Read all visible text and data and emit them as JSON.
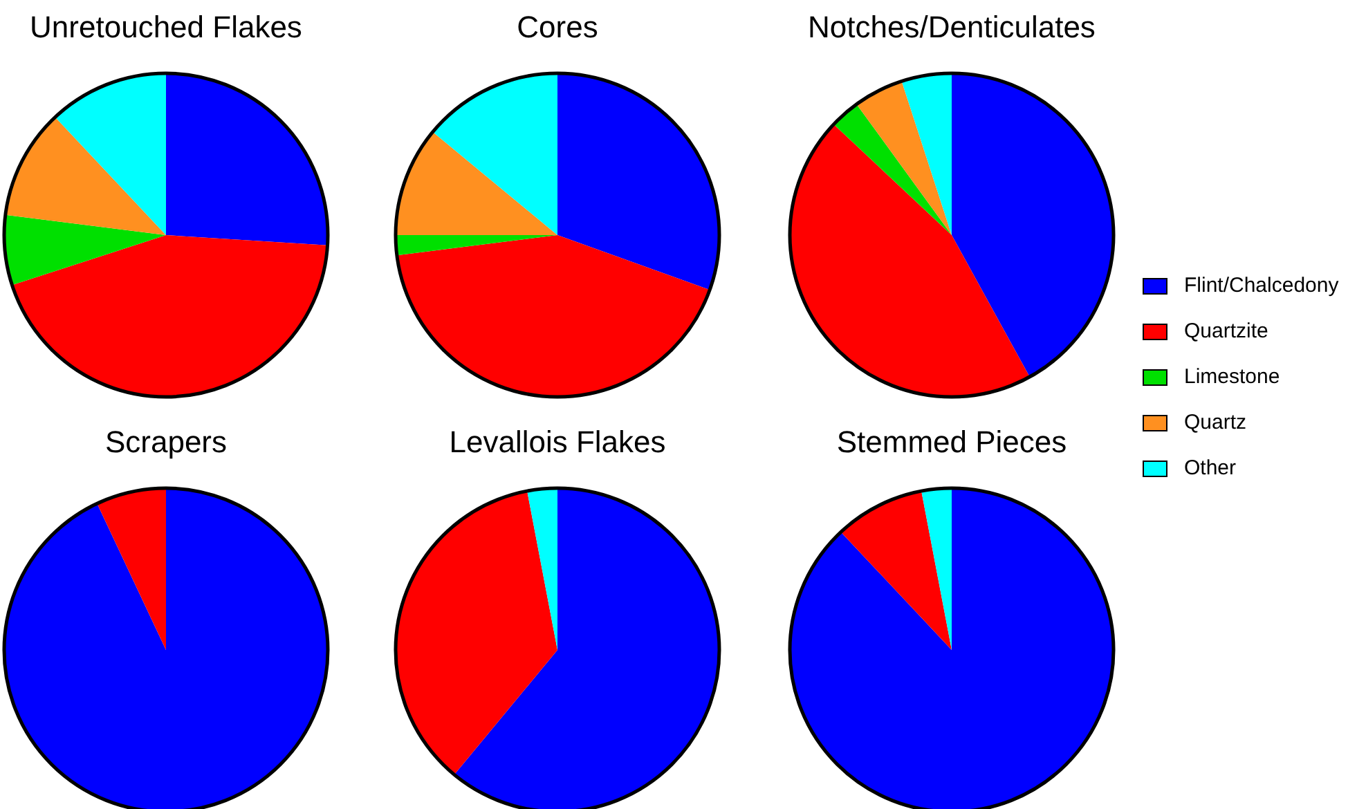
{
  "chart_data": [
    {
      "type": "pie",
      "title": "Unretouched Flakes",
      "categories": [
        null,
        null,
        null,
        null,
        null
      ],
      "values": [
        26,
        44,
        7,
        11,
        12
      ],
      "colors": [
        "#0000ff",
        "#ff0000",
        "#00e000",
        "#ff9020",
        "#00ffff"
      ]
    },
    {
      "type": "pie",
      "title": "Cores",
      "categories": [
        null,
        null,
        null,
        null,
        null
      ],
      "values": [
        30.5,
        42.5,
        2,
        11,
        14
      ],
      "colors": [
        "#0000ff",
        "#ff0000",
        "#00e000",
        "#ff9020",
        "#00ffff"
      ]
    },
    {
      "type": "pie",
      "title": "Notches/Denticulates",
      "categories": [
        "Flint/Chalcedony",
        "Quartzite",
        "Limestone",
        "Quartz",
        "Other"
      ],
      "values": [
        42,
        45,
        3,
        5,
        5
      ],
      "colors": [
        "#0000ff",
        "#ff0000",
        "#00e000",
        "#ff9020",
        "#00ffff"
      ],
      "legend": "right"
    },
    {
      "type": "pie",
      "title": "Scrapers",
      "categories": [
        null,
        null
      ],
      "values": [
        93,
        7
      ],
      "colors": [
        "#0000ff",
        "#ff0000"
      ]
    },
    {
      "type": "pie",
      "title": "Levallois Flakes",
      "categories": [
        null,
        null,
        null
      ],
      "values": [
        61,
        36,
        3
      ],
      "colors": [
        "#0000ff",
        "#ff0000",
        "#00ffff"
      ]
    },
    {
      "type": "pie",
      "title": "Stemmed Pieces",
      "categories": [
        null,
        null,
        null
      ],
      "values": [
        88,
        9,
        3
      ],
      "colors": [
        "#0000ff",
        "#ff0000",
        "#00ffff"
      ]
    }
  ]
}
